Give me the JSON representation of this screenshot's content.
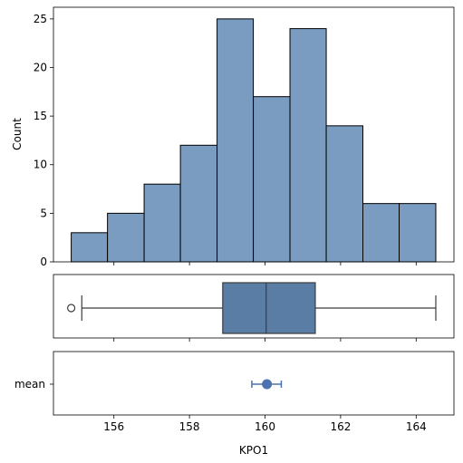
{
  "chart_data": [
    {
      "type": "bar",
      "subtype": "histogram",
      "bin_edges": [
        154.87,
        155.83,
        156.8,
        157.76,
        158.73,
        159.69,
        160.66,
        161.62,
        162.59,
        163.55,
        164.52
      ],
      "values": [
        3,
        5,
        8,
        12,
        25,
        17,
        24,
        14,
        6,
        6
      ],
      "ylabel": "Count",
      "xlabel": "",
      "xlim": [
        154.4,
        165.0
      ],
      "ylim": [
        0,
        26.2
      ],
      "yticks": [
        "0",
        "5",
        "10",
        "15",
        "20",
        "25"
      ],
      "xticks": [
        "156",
        "158",
        "160",
        "162",
        "164"
      ],
      "bar_color": "#7a9cc0",
      "edge_color": "#000000"
    },
    {
      "type": "box",
      "min_whisker": 155.15,
      "q1": 158.88,
      "median": 160.03,
      "q3": 161.33,
      "max_whisker": 164.52,
      "outliers": [
        154.87
      ],
      "xlim": [
        154.4,
        165.0
      ],
      "box_color": "#5a7da6",
      "line_color": "#3d3d3d"
    },
    {
      "type": "errorbar",
      "categories": [
        "mean"
      ],
      "mean": 160.05,
      "ci_low": 159.65,
      "ci_high": 160.43,
      "xlabel": "KPO1",
      "xlim": [
        154.4,
        165.0
      ],
      "xticks": [
        "156",
        "158",
        "160",
        "162",
        "164"
      ],
      "point_color": "#4c72b0"
    }
  ]
}
